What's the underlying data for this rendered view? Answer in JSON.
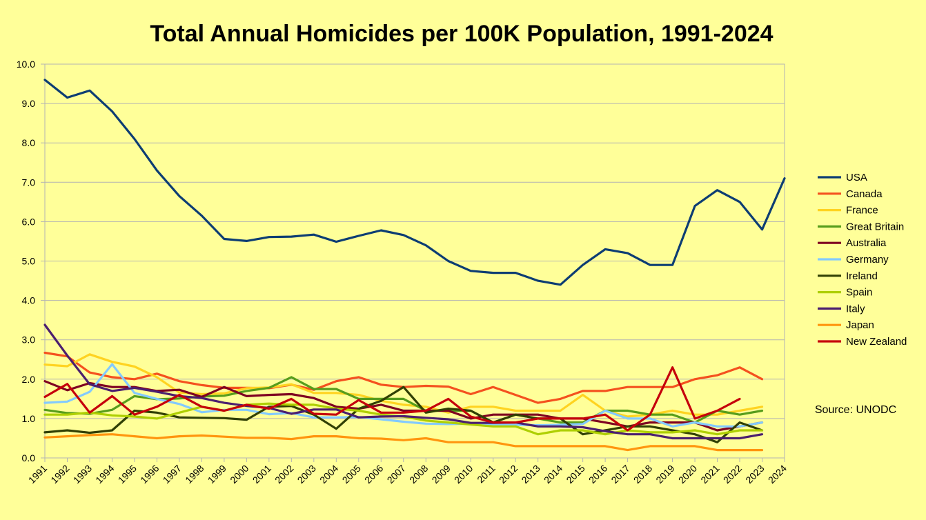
{
  "chart_data": {
    "type": "line",
    "title": "Total Annual Homicides per 100K Population, 1991-2024",
    "xlabel": "",
    "ylabel": "",
    "ylim": [
      0,
      10
    ],
    "y_ticks": [
      "0.0",
      "1.0",
      "2.0",
      "3.0",
      "4.0",
      "5.0",
      "6.0",
      "7.0",
      "8.0",
      "9.0",
      "10.0"
    ],
    "grid": true,
    "legend_position": "right",
    "source_note": "Source: UNODC",
    "x": [
      "1991",
      "1992",
      "1993",
      "1994",
      "1995",
      "1996",
      "1997",
      "1998",
      "1999",
      "2000",
      "2001",
      "2002",
      "2003",
      "2004",
      "2005",
      "2006",
      "2007",
      "2008",
      "2009",
      "2010",
      "2011",
      "2012",
      "2013",
      "2014",
      "2015",
      "2016",
      "2017",
      "2018",
      "2019",
      "2020",
      "2021",
      "2022",
      "2023",
      "2024"
    ],
    "series": [
      {
        "name": "USA",
        "color": "#0d3d73",
        "values": [
          9.6,
          9.15,
          9.33,
          8.8,
          8.1,
          7.3,
          6.65,
          6.15,
          5.56,
          5.51,
          5.61,
          5.62,
          5.67,
          5.49,
          5.64,
          5.78,
          5.66,
          5.4,
          5.0,
          4.75,
          4.7,
          4.7,
          4.5,
          4.4,
          4.9,
          5.3,
          5.2,
          4.9,
          4.9,
          6.4,
          6.8,
          6.5,
          5.8,
          7.1
        ]
      },
      {
        "name": "Canada",
        "color": "#f4511e",
        "values": [
          2.67,
          2.58,
          2.17,
          2.05,
          2.0,
          2.14,
          1.95,
          1.85,
          1.78,
          1.78,
          1.77,
          1.86,
          1.73,
          1.95,
          2.05,
          1.86,
          1.8,
          1.83,
          1.81,
          1.62,
          1.8,
          1.6,
          1.4,
          1.5,
          1.7,
          1.7,
          1.8,
          1.8,
          1.8,
          2.0,
          2.1,
          2.3,
          2.0,
          null
        ]
      },
      {
        "name": "France",
        "color": "#ffd320",
        "values": [
          2.37,
          2.33,
          2.63,
          2.44,
          2.32,
          2.05,
          1.66,
          1.62,
          1.64,
          1.77,
          1.79,
          1.87,
          1.65,
          1.65,
          1.6,
          1.45,
          1.35,
          1.3,
          1.15,
          1.3,
          1.3,
          1.2,
          1.2,
          1.2,
          1.6,
          1.2,
          1.05,
          1.1,
          1.2,
          1.1,
          1.1,
          1.2,
          1.3,
          null
        ]
      },
      {
        "name": "Great Britain",
        "color": "#579d1c",
        "values": [
          1.22,
          1.14,
          1.12,
          1.22,
          1.57,
          1.49,
          1.51,
          1.56,
          1.58,
          1.7,
          1.78,
          2.05,
          1.75,
          1.75,
          1.5,
          1.5,
          1.5,
          1.2,
          1.2,
          1.2,
          0.9,
          1.1,
          1.0,
          0.9,
          0.9,
          1.2,
          1.2,
          1.1,
          1.1,
          0.9,
          1.2,
          1.1,
          1.2,
          null
        ]
      },
      {
        "name": "Australia",
        "color": "#7e0021",
        "values": [
          1.95,
          1.72,
          1.9,
          1.8,
          1.8,
          1.7,
          1.73,
          1.55,
          1.8,
          1.57,
          1.6,
          1.62,
          1.52,
          1.3,
          1.25,
          1.35,
          1.2,
          1.2,
          1.2,
          1.0,
          1.1,
          1.1,
          1.1,
          1.0,
          1.0,
          0.9,
          0.8,
          0.9,
          0.9,
          0.9,
          0.7,
          0.8,
          0.9,
          null
        ]
      },
      {
        "name": "Germany",
        "color": "#83caff",
        "values": [
          1.4,
          1.43,
          1.68,
          2.38,
          1.65,
          1.5,
          1.37,
          1.16,
          1.22,
          1.22,
          1.11,
          1.14,
          1.03,
          1.03,
          1.04,
          0.98,
          0.92,
          0.87,
          0.86,
          0.87,
          0.84,
          0.84,
          0.83,
          0.84,
          0.86,
          1.2,
          1.0,
          1.0,
          0.8,
          0.9,
          0.8,
          0.8,
          0.9,
          null
        ]
      },
      {
        "name": "Ireland",
        "color": "#314004",
        "values": [
          0.65,
          0.7,
          0.64,
          0.7,
          1.2,
          1.15,
          1.03,
          1.02,
          1.01,
          0.97,
          1.3,
          1.32,
          1.1,
          0.74,
          1.25,
          1.45,
          1.8,
          1.15,
          1.25,
          1.2,
          0.9,
          1.1,
          1.0,
          1.0,
          0.6,
          0.7,
          0.8,
          0.8,
          0.7,
          0.6,
          0.4,
          0.9,
          0.7,
          null
        ]
      },
      {
        "name": "Spain",
        "color": "#aecf00",
        "values": [
          1.1,
          1.1,
          1.15,
          1.08,
          1.05,
          1.0,
          1.15,
          1.3,
          1.2,
          1.35,
          1.38,
          1.35,
          1.35,
          1.25,
          1.2,
          1.1,
          1.05,
          0.95,
          0.9,
          0.85,
          0.8,
          0.8,
          0.6,
          0.7,
          0.7,
          0.6,
          0.7,
          0.65,
          0.65,
          0.7,
          0.6,
          0.7,
          0.7,
          null
        ]
      },
      {
        "name": "Italy",
        "color": "#4b1f6f",
        "values": [
          3.38,
          2.6,
          1.87,
          1.7,
          1.78,
          1.68,
          1.57,
          1.52,
          1.4,
          1.32,
          1.27,
          1.12,
          1.23,
          1.23,
          1.03,
          1.05,
          1.06,
          1.02,
          0.98,
          0.89,
          0.89,
          0.9,
          0.8,
          0.8,
          0.78,
          0.68,
          0.6,
          0.6,
          0.5,
          0.5,
          0.5,
          0.5,
          0.6,
          null
        ]
      },
      {
        "name": "Japan",
        "color": "#ff950e",
        "values": [
          0.52,
          0.55,
          0.58,
          0.6,
          0.55,
          0.5,
          0.55,
          0.57,
          0.54,
          0.51,
          0.51,
          0.48,
          0.55,
          0.55,
          0.5,
          0.49,
          0.45,
          0.5,
          0.4,
          0.4,
          0.4,
          0.3,
          0.3,
          0.3,
          0.3,
          0.3,
          0.2,
          0.3,
          0.3,
          0.3,
          0.2,
          0.2,
          0.2,
          null
        ]
      },
      {
        "name": "New Zealand",
        "color": "#c5000b",
        "values": [
          1.55,
          1.88,
          1.15,
          1.57,
          1.1,
          1.3,
          1.6,
          1.3,
          1.2,
          1.35,
          1.25,
          1.5,
          1.12,
          1.1,
          1.47,
          1.15,
          1.15,
          1.2,
          1.5,
          1.05,
          0.9,
          0.9,
          1.0,
          1.0,
          1.0,
          1.1,
          0.7,
          1.1,
          2.3,
          1.0,
          1.2,
          1.5,
          null,
          null
        ]
      }
    ]
  }
}
